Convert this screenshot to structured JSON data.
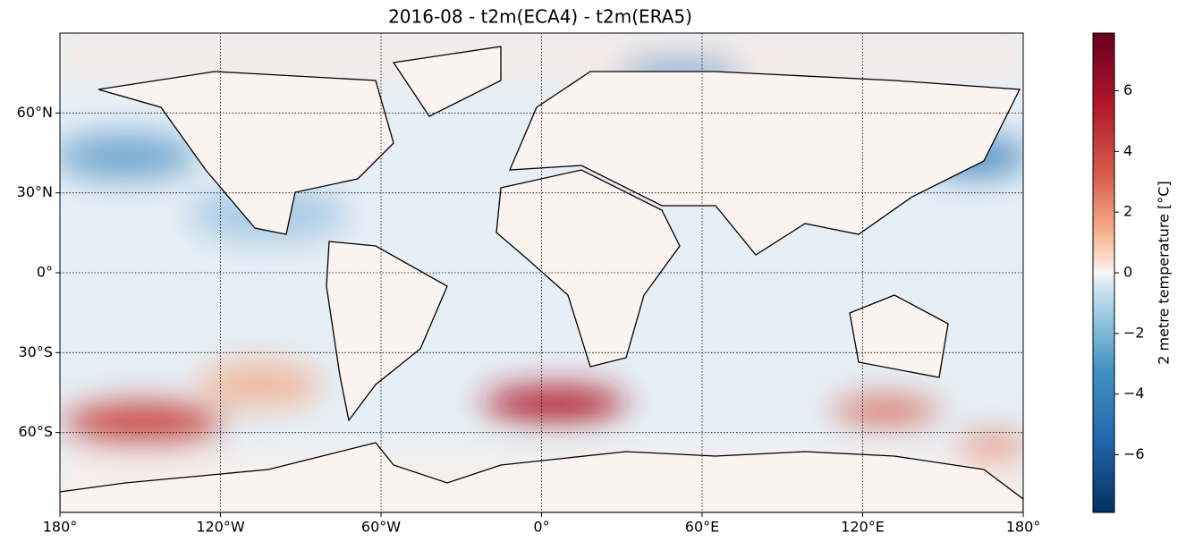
{
  "map": {
    "title": "2016-08 - t2m(ECA4) - t2m(ERA5)",
    "xlim": [
      -180,
      180
    ],
    "ylim": [
      -90,
      90
    ],
    "xticks": [
      {
        "value": -180,
        "label": "180°"
      },
      {
        "value": -120,
        "label": "120°W"
      },
      {
        "value": -60,
        "label": "60°W"
      },
      {
        "value": 0,
        "label": "0°"
      },
      {
        "value": 60,
        "label": "60°E"
      },
      {
        "value": 120,
        "label": "120°E"
      },
      {
        "value": 180,
        "label": "180°"
      }
    ],
    "yticks": [
      {
        "value": 60,
        "label": "60°N"
      },
      {
        "value": 30,
        "label": "30°N"
      },
      {
        "value": 0,
        "label": "0°"
      },
      {
        "value": -30,
        "label": "30°S"
      },
      {
        "value": -60,
        "label": "60°S"
      }
    ],
    "grid": true,
    "colorbar": {
      "label": "2 metre temperature [°C]",
      "lim": [
        -7.9,
        7.9
      ],
      "ticks": [
        {
          "value": -6,
          "label": "−6"
        },
        {
          "value": -4,
          "label": "−4"
        },
        {
          "value": -2,
          "label": "−2"
        },
        0,
        2,
        4,
        6
      ]
    }
  }
}
